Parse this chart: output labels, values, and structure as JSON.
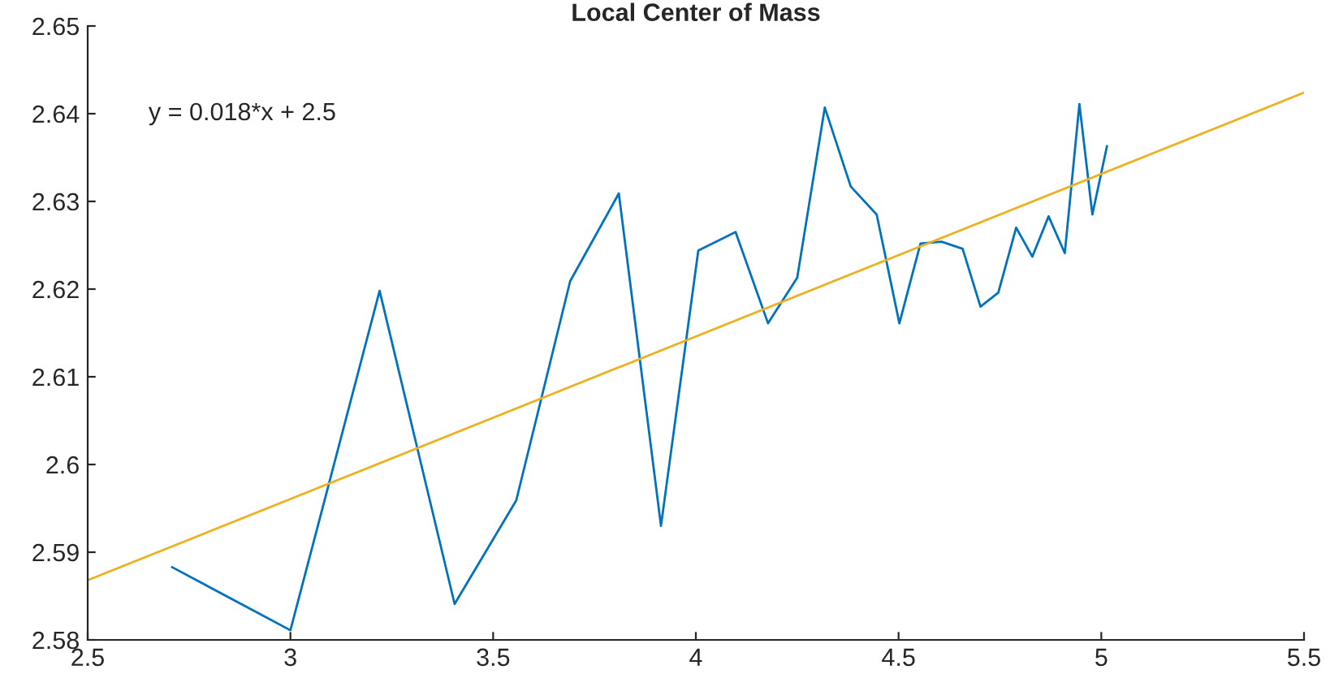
{
  "chart_data": {
    "type": "line",
    "title": "Local Center of Mass",
    "series": [
      {
        "color": "#0072bd",
        "x": [
          2.708,
          3.0,
          3.22,
          3.405,
          3.557,
          3.69,
          3.81,
          3.914,
          4.006,
          4.098,
          4.178,
          4.25,
          4.318,
          4.382,
          4.446,
          4.502,
          4.554,
          4.606,
          4.658,
          4.702,
          4.746,
          4.79,
          4.83,
          4.87,
          4.91,
          4.946,
          4.978,
          5.014
        ],
        "values": [
          2.5883,
          2.5811,
          2.6198,
          2.5841,
          2.5959,
          2.6209,
          2.6309,
          2.593,
          2.6244,
          2.6265,
          2.6161,
          2.6213,
          2.6407,
          2.6317,
          2.6285,
          2.6161,
          2.6252,
          2.6254,
          2.6246,
          2.618,
          2.6196,
          2.627,
          2.6237,
          2.6283,
          2.6241,
          2.6411,
          2.6285,
          2.6363
        ]
      },
      {
        "color": "#edb120",
        "x": [
          2.5,
          5.5
        ],
        "values": [
          2.5868,
          2.6424
        ]
      }
    ],
    "annotations": [
      "y = 0.018*x + 2.5"
    ],
    "xlim": [
      2.5,
      5.5
    ],
    "xticks": [
      2.5,
      3,
      3.5,
      4,
      4.5,
      5,
      5.5
    ],
    "ylim": [
      2.58,
      2.65
    ],
    "yticks": [
      2.58,
      2.59,
      2.6,
      2.61,
      2.62,
      2.63,
      2.64,
      2.65
    ],
    "grid": false,
    "legend": false
  }
}
